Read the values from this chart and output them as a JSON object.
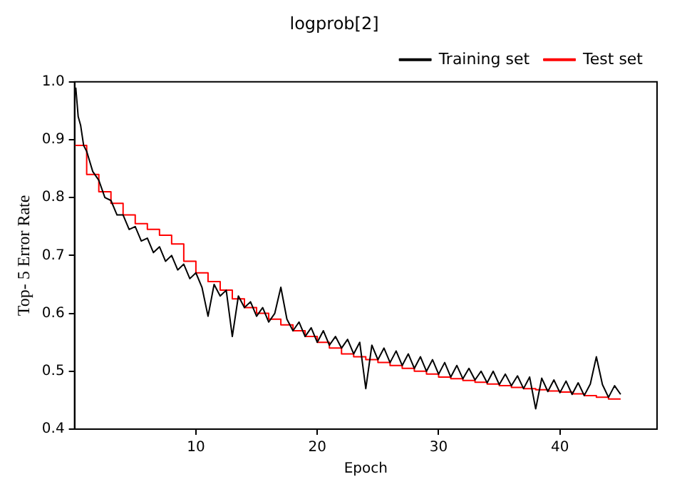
{
  "chart_data": {
    "type": "line",
    "title": "logprob[2]",
    "xlabel": "Epoch",
    "ylabel": "Top- 5 Error Rate",
    "xlim": [
      0,
      48
    ],
    "xticks": [
      10,
      20,
      30,
      40
    ],
    "ylim": [
      0.4,
      1.0
    ],
    "yticks": [
      0.4,
      0.5,
      0.6,
      0.7,
      0.8,
      0.9,
      {
        "value": 1.0,
        "label": "1.0"
      }
    ],
    "legend": "top right",
    "grid": false,
    "marker": "none",
    "series": [
      {
        "name": "Training set",
        "type": "line",
        "color": "#000000",
        "x": [
          0.1,
          0.3,
          0.5,
          0.75,
          1,
          1.5,
          2,
          2.5,
          3,
          3.5,
          4,
          4.5,
          5,
          5.5,
          6,
          6.5,
          7,
          7.5,
          8,
          8.5,
          9,
          9.5,
          10,
          10.5,
          11,
          11.5,
          12,
          12.5,
          13,
          13.5,
          14,
          14.5,
          15,
          15.5,
          16,
          16.5,
          17,
          17.5,
          18,
          18.5,
          19,
          19.5,
          20,
          20.5,
          21,
          21.5,
          22,
          22.5,
          23,
          23.5,
          24,
          24.5,
          25,
          25.5,
          26,
          26.5,
          27,
          27.5,
          28,
          28.5,
          29,
          29.5,
          30,
          30.5,
          31,
          31.5,
          32,
          32.5,
          33,
          33.5,
          34,
          34.5,
          35,
          35.5,
          36,
          36.5,
          37,
          37.5,
          38,
          38.5,
          39,
          39.5,
          40,
          40.5,
          41,
          41.5,
          42,
          42.5,
          43,
          43.5,
          44,
          44.5,
          45
        ],
        "values": [
          0.99,
          0.94,
          0.925,
          0.89,
          0.88,
          0.845,
          0.83,
          0.8,
          0.795,
          0.77,
          0.77,
          0.745,
          0.75,
          0.725,
          0.73,
          0.705,
          0.715,
          0.69,
          0.7,
          0.675,
          0.685,
          0.66,
          0.67,
          0.645,
          0.595,
          0.65,
          0.63,
          0.64,
          0.56,
          0.63,
          0.61,
          0.62,
          0.595,
          0.61,
          0.585,
          0.6,
          0.645,
          0.59,
          0.57,
          0.585,
          0.56,
          0.575,
          0.55,
          0.57,
          0.545,
          0.56,
          0.54,
          0.555,
          0.53,
          0.55,
          0.47,
          0.545,
          0.52,
          0.54,
          0.515,
          0.535,
          0.51,
          0.53,
          0.505,
          0.525,
          0.5,
          0.52,
          0.495,
          0.515,
          0.49,
          0.51,
          0.487,
          0.505,
          0.485,
          0.5,
          0.48,
          0.5,
          0.477,
          0.495,
          0.475,
          0.492,
          0.47,
          0.49,
          0.435,
          0.488,
          0.465,
          0.485,
          0.463,
          0.483,
          0.46,
          0.48,
          0.458,
          0.478,
          0.525,
          0.477,
          0.455,
          0.475,
          0.46
        ]
      },
      {
        "name": "Test set",
        "type": "step",
        "color": "#ff0000",
        "x": [
          0,
          1,
          2,
          3,
          4,
          5,
          6,
          7,
          8,
          9,
          10,
          11,
          12,
          13,
          14,
          15,
          16,
          17,
          18,
          19,
          20,
          21,
          22,
          23,
          24,
          25,
          26,
          27,
          28,
          29,
          30,
          31,
          32,
          33,
          34,
          35,
          36,
          37,
          38,
          39,
          40,
          41,
          42,
          43,
          44,
          45
        ],
        "values": [
          0.89,
          0.84,
          0.81,
          0.79,
          0.77,
          0.755,
          0.745,
          0.735,
          0.72,
          0.69,
          0.67,
          0.655,
          0.64,
          0.625,
          0.61,
          0.6,
          0.59,
          0.58,
          0.57,
          0.56,
          0.55,
          0.54,
          0.53,
          0.525,
          0.52,
          0.515,
          0.51,
          0.505,
          0.5,
          0.495,
          0.49,
          0.487,
          0.484,
          0.481,
          0.478,
          0.475,
          0.472,
          0.47,
          0.468,
          0.466,
          0.464,
          0.461,
          0.458,
          0.455,
          0.452,
          0.452
        ]
      }
    ]
  }
}
